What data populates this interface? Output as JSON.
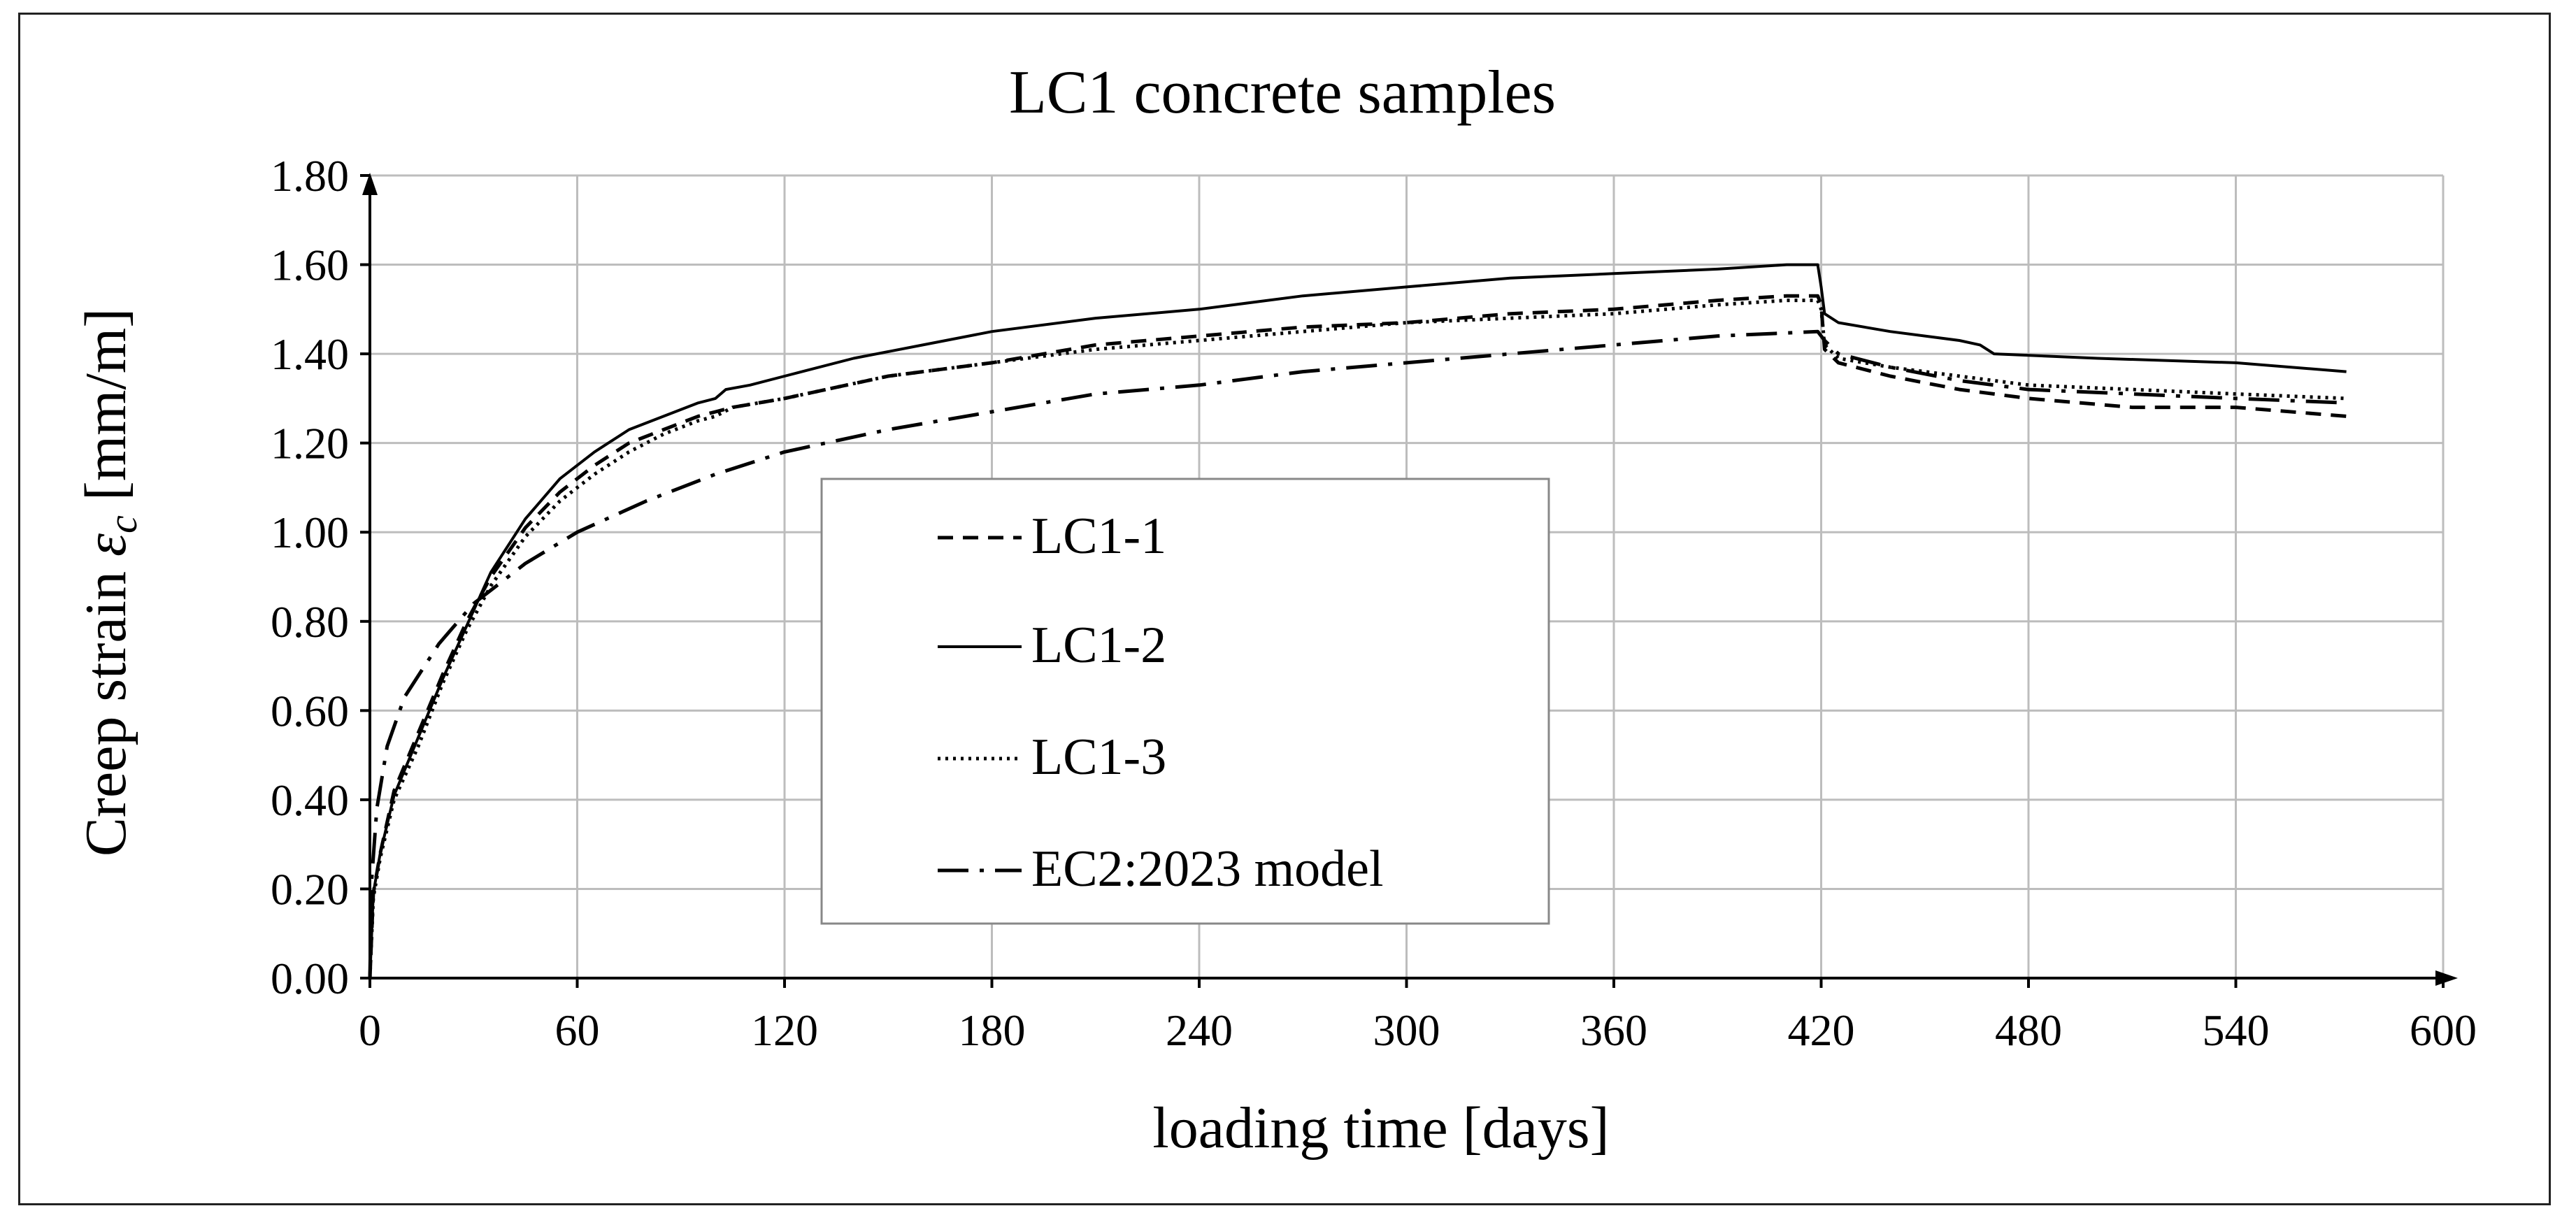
{
  "chart_data": {
    "type": "line",
    "title": "LC1 concrete samples",
    "xlabel": "loading time [days]",
    "ylabel": {
      "prefix": "Creep strain ",
      "symbol": "ε",
      "subscript": "c",
      "suffix": " [mm/m]"
    },
    "xlim": [
      0,
      600
    ],
    "ylim": [
      0,
      1.8
    ],
    "xticks": [
      0,
      60,
      120,
      180,
      240,
      300,
      360,
      420,
      480,
      540,
      600
    ],
    "xtick_labels": [
      "0",
      "60",
      "120",
      "180",
      "240",
      "300",
      "360",
      "420",
      "480",
      "540",
      "600"
    ],
    "yticks": [
      0,
      0.2,
      0.4,
      0.6,
      0.8,
      1.0,
      1.2,
      1.4,
      1.6,
      1.8
    ],
    "ytick_labels": [
      "0.00",
      "0.20",
      "0.40",
      "0.60",
      "0.80",
      "1.00",
      "1.20",
      "1.40",
      "1.60",
      "1.80"
    ],
    "grid": true,
    "legend_position": "center",
    "series": [
      {
        "name": "LC1-1",
        "style": "dashed",
        "x": [
          0,
          1,
          3,
          7,
          14,
          21,
          28,
          35,
          45,
          55,
          65,
          75,
          85,
          95,
          100,
          105,
          120,
          150,
          180,
          210,
          240,
          270,
          300,
          330,
          360,
          390,
          410,
          419,
          420,
          421,
          425,
          440,
          460,
          480,
          510,
          540,
          572
        ],
        "y": [
          0,
          0.19,
          0.28,
          0.42,
          0.55,
          0.68,
          0.8,
          0.9,
          1.01,
          1.09,
          1.15,
          1.2,
          1.23,
          1.26,
          1.27,
          1.28,
          1.3,
          1.35,
          1.38,
          1.42,
          1.44,
          1.46,
          1.47,
          1.49,
          1.5,
          1.52,
          1.53,
          1.53,
          1.51,
          1.41,
          1.38,
          1.35,
          1.32,
          1.3,
          1.28,
          1.28,
          1.26
        ]
      },
      {
        "name": "LC1-2",
        "style": "solid",
        "x": [
          0,
          1,
          3,
          7,
          14,
          21,
          28,
          35,
          45,
          55,
          65,
          75,
          85,
          95,
          100,
          103,
          110,
          120,
          140,
          160,
          180,
          210,
          240,
          270,
          300,
          330,
          360,
          390,
          410,
          419,
          420,
          421,
          425,
          440,
          460,
          466,
          470,
          500,
          540,
          572
        ],
        "y": [
          0,
          0.19,
          0.28,
          0.41,
          0.54,
          0.67,
          0.79,
          0.91,
          1.03,
          1.12,
          1.18,
          1.23,
          1.26,
          1.29,
          1.3,
          1.32,
          1.33,
          1.35,
          1.39,
          1.42,
          1.45,
          1.48,
          1.5,
          1.53,
          1.55,
          1.57,
          1.58,
          1.59,
          1.6,
          1.6,
          1.55,
          1.49,
          1.47,
          1.45,
          1.43,
          1.42,
          1.4,
          1.39,
          1.38,
          1.36
        ]
      },
      {
        "name": "LC1-3",
        "style": "dotted",
        "x": [
          0,
          1,
          3,
          7,
          14,
          21,
          28,
          35,
          45,
          55,
          65,
          75,
          85,
          95,
          100,
          105,
          120,
          150,
          180,
          210,
          240,
          270,
          300,
          330,
          360,
          390,
          410,
          419,
          420,
          421,
          425,
          440,
          460,
          480,
          510,
          540,
          572
        ],
        "y": [
          0,
          0.18,
          0.27,
          0.4,
          0.52,
          0.66,
          0.78,
          0.88,
          0.99,
          1.07,
          1.13,
          1.18,
          1.22,
          1.25,
          1.26,
          1.28,
          1.3,
          1.35,
          1.38,
          1.41,
          1.43,
          1.45,
          1.47,
          1.48,
          1.49,
          1.51,
          1.52,
          1.52,
          1.5,
          1.42,
          1.39,
          1.37,
          1.35,
          1.33,
          1.32,
          1.31,
          1.3
        ]
      },
      {
        "name": "EC2:2023 model",
        "style": "dashdot",
        "x": [
          0,
          0.5,
          2,
          5,
          10,
          20,
          30,
          45,
          60,
          80,
          100,
          120,
          150,
          180,
          210,
          240,
          270,
          300,
          330,
          360,
          390,
          419,
          420,
          421,
          425,
          440,
          460,
          480,
          510,
          540,
          572
        ],
        "y": [
          0,
          0.22,
          0.38,
          0.52,
          0.63,
          0.75,
          0.84,
          0.93,
          1.0,
          1.07,
          1.13,
          1.18,
          1.23,
          1.27,
          1.31,
          1.33,
          1.36,
          1.38,
          1.4,
          1.42,
          1.44,
          1.45,
          1.44,
          1.43,
          1.4,
          1.37,
          1.34,
          1.32,
          1.31,
          1.3,
          1.29
        ]
      }
    ]
  }
}
